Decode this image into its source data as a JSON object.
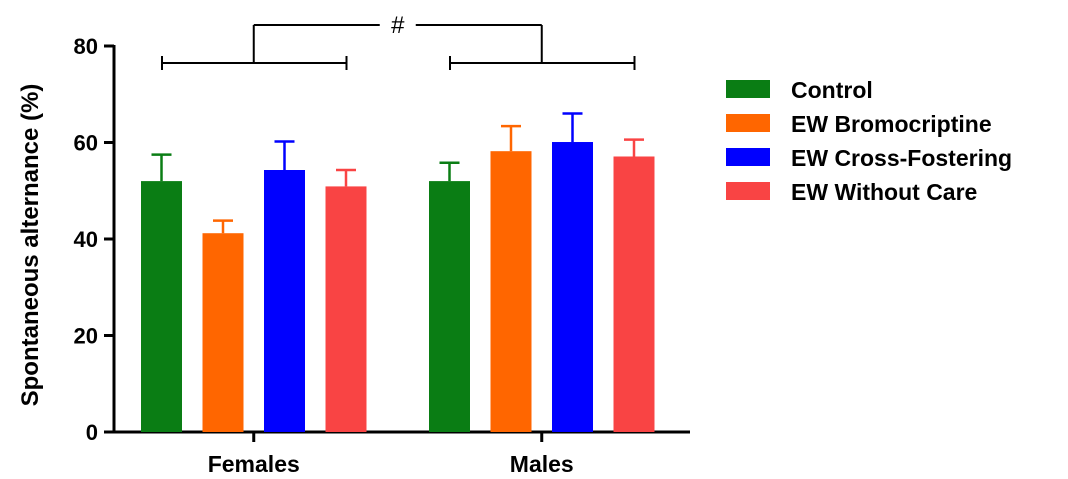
{
  "chart_data": {
    "type": "bar",
    "ylabel": "Spontaneous alternance (%)",
    "xlabel": "",
    "ylim": [
      0,
      80
    ],
    "yticks": [
      0,
      20,
      40,
      60,
      80
    ],
    "categories": [
      "Females",
      "Males"
    ],
    "series": [
      {
        "name": "Control",
        "color": "#0a7d14",
        "values": [
          52,
          52
        ],
        "errors": [
          5.5,
          3.8
        ]
      },
      {
        "name": "EW Bromocriptine",
        "color": "#ff6600",
        "values": [
          41.2,
          58.2
        ],
        "errors": [
          2.6,
          5.2
        ]
      },
      {
        "name": "EW Cross-Fostering",
        "color": "#0000ff",
        "values": [
          54.3,
          60.1
        ],
        "errors": [
          5.9,
          5.9
        ]
      },
      {
        "name": "EW Without Care",
        "color": "#f94444",
        "values": [
          50.9,
          57.1
        ],
        "errors": [
          3.4,
          3.5
        ]
      }
    ],
    "annotation": "#",
    "legend_position": "right",
    "grid": false
  }
}
